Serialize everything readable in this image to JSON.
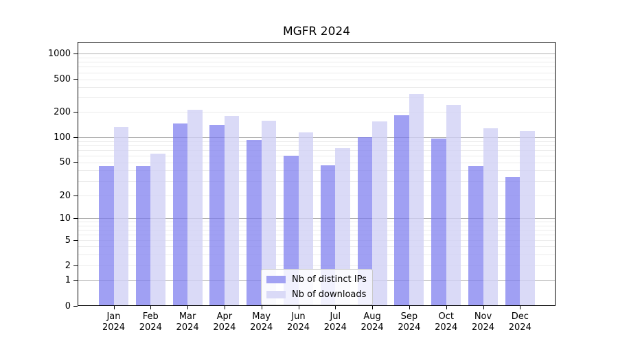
{
  "title": "MGFR 2024",
  "legend": {
    "items": [
      {
        "label": "Nb of distinct IPs",
        "color": "#a2a2f3"
      },
      {
        "label": "Nb of downloads",
        "color": "#dadaf7"
      }
    ]
  },
  "y_axis": {
    "tick_labels": [
      "0",
      "1",
      "2",
      "5",
      "10",
      "20",
      "50",
      "100",
      "200",
      "500",
      "1000"
    ]
  },
  "x_axis": {
    "year_line": "2024"
  },
  "colors": {
    "bar_ips_fill": "rgba(124,124,238,0.72)",
    "bar_downloads_fill": "rgba(207,207,245,0.78)",
    "major_gridline": "#b0b0b0",
    "minor_gridline": "#ebebeb"
  },
  "chart_data": {
    "type": "bar",
    "title": "MGFR 2024",
    "categories": [
      "Jan",
      "Feb",
      "Mar",
      "Apr",
      "May",
      "Jun",
      "Jul",
      "Aug",
      "Sep",
      "Oct",
      "Nov",
      "Dec"
    ],
    "x_tick_second_line": "2024",
    "series": [
      {
        "name": "Nb of distinct IPs",
        "color": "#a2a2f3",
        "values": [
          45,
          45,
          145,
          140,
          94,
          60,
          46,
          100,
          184,
          96,
          45,
          33
        ]
      },
      {
        "name": "Nb of downloads",
        "color": "#dadaf7",
        "values": [
          134,
          64,
          214,
          180,
          157,
          115,
          74,
          154,
          330,
          242,
          129,
          119
        ]
      }
    ],
    "xlabel": "",
    "ylabel": "",
    "y_scale": "asinh-like (linear near 0, logarithmic above)",
    "y_ticks": [
      0,
      1,
      2,
      5,
      10,
      20,
      50,
      100,
      200,
      500,
      1000
    ],
    "ylim": [
      0,
      1450
    ],
    "grid": "horizontal: dark lines at 1,10,100,1000; light lines at other steps",
    "legend_position": "lower center, inside axes"
  }
}
